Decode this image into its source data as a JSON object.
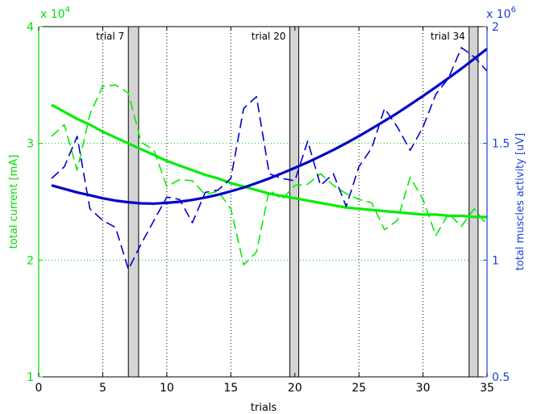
{
  "chart_data": {
    "type": "line",
    "xlabel": "trials",
    "ylabel_left": "total current [mA]",
    "ylabel_right": "total muscles activity [uV]",
    "exponent_left": "x 10",
    "exponent_left_power": "4",
    "exponent_right": "x 10",
    "exponent_right_power": "6",
    "xlim": [
      0,
      35
    ],
    "ylim_left": [
      10000,
      40000
    ],
    "ylim_right": [
      500000,
      2000000
    ],
    "x_ticks": [
      0,
      5,
      10,
      15,
      20,
      25,
      30,
      35
    ],
    "x_tick_labels": [
      "0",
      "5",
      "10",
      "15",
      "20",
      "25",
      "30",
      "35"
    ],
    "y_left_ticks": [
      10000,
      20000,
      30000,
      40000
    ],
    "y_left_tick_labels": [
      "1",
      "2",
      "3",
      "4"
    ],
    "y_right_ticks": [
      500000,
      1000000,
      1500000,
      2000000
    ],
    "y_right_tick_labels": [
      "0.5",
      "1",
      "1.5",
      "2"
    ],
    "colors": {
      "current": "#00ee00",
      "activity": "#0000cc",
      "current_axis": "#00dd00",
      "activity_axis": "#1a3fdd",
      "grid_vertical": "#000000",
      "grid_horizontal": "#00cc00",
      "highlight_fill": "#d4d4d4"
    },
    "highlights": [
      {
        "x_start": 7.0,
        "x_end": 7.8,
        "label": "trial 7"
      },
      {
        "x_start": 19.6,
        "x_end": 20.3,
        "label": "trial 20"
      },
      {
        "x_start": 33.6,
        "x_end": 34.3,
        "label": "trial 34"
      }
    ],
    "series": [
      {
        "axis": "left",
        "style": "dashed",
        "x": [
          1,
          2,
          3,
          4,
          5,
          6,
          7,
          8,
          9,
          10,
          11,
          12,
          13,
          14,
          15,
          16,
          17,
          18,
          19,
          20,
          21,
          22,
          23,
          24,
          25,
          26,
          27,
          28,
          29,
          30,
          31,
          32,
          33,
          34,
          35
        ],
        "values": [
          30600,
          31600,
          27700,
          32500,
          34900,
          35000,
          34300,
          30100,
          29400,
          26300,
          26900,
          26800,
          25600,
          25900,
          24400,
          19600,
          20700,
          26000,
          25200,
          26400,
          26500,
          27400,
          26400,
          25700,
          25200,
          24900,
          22600,
          23400,
          27100,
          25200,
          22100,
          24000,
          22900,
          24400,
          23000
        ]
      },
      {
        "axis": "left",
        "style": "solid",
        "x": [
          1,
          2,
          3,
          4,
          5,
          6,
          7,
          8,
          9,
          10,
          11,
          12,
          13,
          14,
          15,
          16,
          17,
          18,
          19,
          20,
          21,
          22,
          23,
          24,
          25,
          26,
          27,
          28,
          29,
          30,
          31,
          32,
          33,
          34,
          35
        ],
        "values": [
          33300,
          32700,
          32100,
          31600,
          31000,
          30500,
          30000,
          29500,
          29000,
          28500,
          28100,
          27700,
          27300,
          27000,
          26600,
          26300,
          26000,
          25700,
          25500,
          25300,
          25100,
          24900,
          24700,
          24500,
          24400,
          24300,
          24200,
          24100,
          24000,
          23900,
          23900,
          23800,
          23800,
          23700,
          23700
        ]
      },
      {
        "axis": "right",
        "style": "dashed",
        "x": [
          1,
          2,
          3,
          4,
          5,
          6,
          7,
          8,
          9,
          10,
          11,
          12,
          13,
          14,
          15,
          16,
          17,
          18,
          19,
          20,
          21,
          22,
          23,
          24,
          25,
          26,
          27,
          28,
          29,
          30,
          31,
          32,
          33,
          34,
          35
        ],
        "values": [
          1350000,
          1400000,
          1530000,
          1220000,
          1170000,
          1140000,
          960000,
          1070000,
          1170000,
          1270000,
          1260000,
          1160000,
          1290000,
          1300000,
          1350000,
          1650000,
          1700000,
          1370000,
          1350000,
          1340000,
          1510000,
          1320000,
          1370000,
          1230000,
          1400000,
          1480000,
          1650000,
          1570000,
          1470000,
          1570000,
          1710000,
          1780000,
          1910000,
          1870000,
          1810000
        ]
      },
      {
        "axis": "right",
        "style": "solid",
        "x": [
          1,
          2,
          3,
          4,
          5,
          6,
          7,
          8,
          9,
          10,
          11,
          12,
          13,
          14,
          15,
          16,
          17,
          18,
          19,
          20,
          21,
          22,
          23,
          24,
          25,
          26,
          27,
          28,
          29,
          30,
          31,
          32,
          33,
          34,
          35
        ],
        "values": [
          1320000,
          1305000,
          1290000,
          1278000,
          1265000,
          1255000,
          1248000,
          1243000,
          1242000,
          1245000,
          1250000,
          1258000,
          1268000,
          1280000,
          1295000,
          1311000,
          1330000,
          1350000,
          1372000,
          1395000,
          1419000,
          1445000,
          1472000,
          1501000,
          1531000,
          1563000,
          1596000,
          1630000,
          1666000,
          1703000,
          1741000,
          1780000,
          1820000,
          1862000,
          1905000
        ]
      }
    ]
  }
}
